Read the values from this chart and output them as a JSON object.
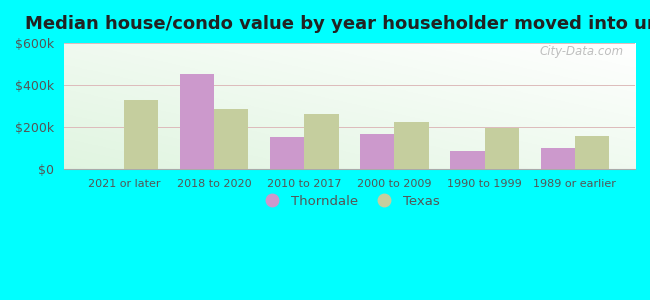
{
  "title": "Median house/condo value by year householder moved into unit",
  "categories": [
    "2021 or later",
    "2018 to 2020",
    "2010 to 2017",
    "2000 to 2009",
    "1990 to 1999",
    "1989 or earlier"
  ],
  "thorndale_values": [
    0,
    450000,
    155000,
    165000,
    85000,
    100000
  ],
  "texas_values": [
    330000,
    285000,
    262000,
    225000,
    195000,
    158000
  ],
  "thorndale_color": "#cc99cc",
  "texas_color": "#c5ce9e",
  "background_color": "#00ffff",
  "ylim": [
    0,
    600000
  ],
  "yticks": [
    0,
    200000,
    400000,
    600000
  ],
  "legend_labels": [
    "Thorndale",
    "Texas"
  ],
  "watermark": "City-Data.com",
  "title_fontsize": 13,
  "bar_width": 0.38,
  "grid_color": "#dddddd",
  "tick_label_color": "#555555",
  "title_color": "#222222"
}
